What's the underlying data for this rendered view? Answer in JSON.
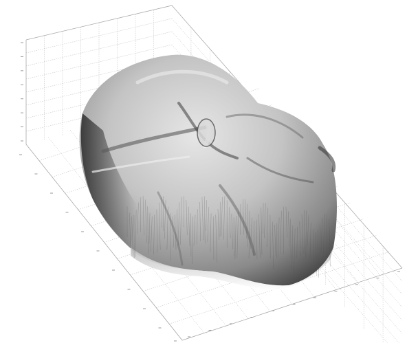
{
  "chart_data": {
    "type": "surface",
    "title": "",
    "xlabel": "",
    "ylabel": "",
    "zlabel": "",
    "grid": true,
    "shading": "gray",
    "series": []
  },
  "colors": {
    "background": "#ffffff",
    "grid": "#b8b8b8",
    "surface_light": "#e4e4e4",
    "surface_mid": "#a0a0a0",
    "surface_dark": "#3a3a3a"
  }
}
